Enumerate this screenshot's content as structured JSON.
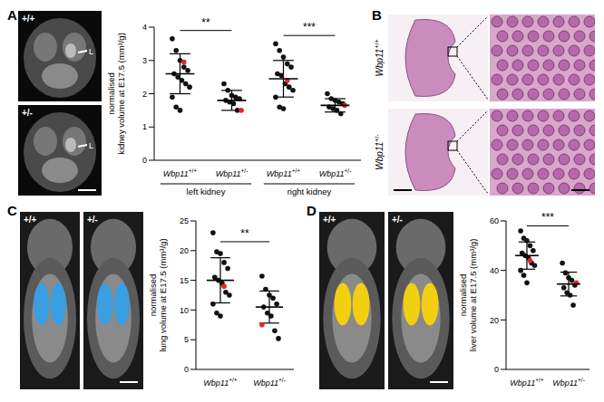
{
  "panels": [
    {
      "letter": "A",
      "images": [
        {
          "genotype": "+/+",
          "marker": "L"
        },
        {
          "genotype": "+/-",
          "marker": "L"
        }
      ]
    },
    {
      "letter": "B",
      "images": [
        {
          "gene": "Wbp11",
          "genotype": "+/+"
        },
        {
          "gene": "Wbp11",
          "genotype": "+/-"
        }
      ]
    },
    {
      "letter": "C",
      "images": [
        {
          "genotype": "+/+"
        },
        {
          "genotype": "+/-"
        }
      ]
    },
    {
      "letter": "D",
      "images": [
        {
          "genotype": "+/+"
        },
        {
          "genotype": "+/-"
        }
      ]
    }
  ],
  "chart_data": [
    {
      "type": "scatter",
      "y_label": "normalised kidney volume at E17.5 (mm³/g)",
      "categories": [
        "Wbp11+/+",
        "Wbp11+/-",
        "Wbp11+/+",
        "Wbp11+/-"
      ],
      "groups": [
        {
          "label": "left kidney",
          "span": [
            0,
            1
          ]
        },
        {
          "label": "right kidney",
          "span": [
            2,
            3
          ]
        }
      ],
      "values": [
        [
          3.65,
          3.3,
          3.0,
          2.8,
          2.7,
          2.6,
          2.5,
          2.4,
          2.3,
          2.2,
          1.9,
          1.6,
          1.5,
          2.95
        ],
        [
          2.3,
          2.1,
          1.95,
          1.9,
          1.85,
          1.8,
          1.75,
          1.7,
          1.5,
          1.5
        ],
        [
          3.5,
          3.3,
          3.1,
          2.9,
          2.8,
          2.6,
          2.55,
          2.3,
          2.2,
          2.1,
          1.9,
          1.6,
          1.55,
          2.4
        ],
        [
          2.0,
          1.85,
          1.8,
          1.75,
          1.7,
          1.6,
          1.55,
          1.5,
          1.4,
          1.65
        ]
      ],
      "colors": [
        [
          "#111111",
          "#111111",
          "#111111",
          "#111111",
          "#111111",
          "#111111",
          "#111111",
          "#111111",
          "#111111",
          "#111111",
          "#111111",
          "#111111",
          "#111111",
          "#e8262a"
        ],
        [
          "#111111",
          "#111111",
          "#111111",
          "#111111",
          "#111111",
          "#111111",
          "#111111",
          "#111111",
          "#111111",
          "#e8262a"
        ],
        [
          "#111111",
          "#111111",
          "#111111",
          "#111111",
          "#111111",
          "#111111",
          "#111111",
          "#111111",
          "#111111",
          "#111111",
          "#111111",
          "#111111",
          "#111111",
          "#e8262a"
        ],
        [
          "#111111",
          "#111111",
          "#111111",
          "#111111",
          "#111111",
          "#111111",
          "#111111",
          "#111111",
          "#111111",
          "#e8262a"
        ]
      ],
      "mean": [
        2.6,
        1.8,
        2.45,
        1.65
      ],
      "sd": [
        0.6,
        0.3,
        0.55,
        0.2
      ],
      "ylim": [
        0,
        4
      ],
      "yticks": [
        0,
        1,
        2,
        3,
        4
      ],
      "annotations": [
        {
          "text": "**",
          "between": [
            0,
            1
          ],
          "y": 3.9
        },
        {
          "text": "***",
          "between": [
            2,
            3
          ],
          "y": 3.75
        }
      ]
    },
    {
      "type": "scatter",
      "y_label": "normalised lung volume at E17.5 (mm³/g)",
      "categories": [
        "Wbp11+/+",
        "Wbp11+/-"
      ],
      "values": [
        [
          23,
          19.8,
          19.5,
          18,
          17,
          15.5,
          15,
          14.5,
          13,
          12.5,
          11,
          9.5,
          9,
          14
        ],
        [
          15.7,
          13.5,
          12.5,
          12,
          11,
          10.5,
          9.5,
          9,
          6.5,
          5.2,
          7.5
        ]
      ],
      "colors": [
        [
          "#111111",
          "#111111",
          "#111111",
          "#111111",
          "#111111",
          "#111111",
          "#111111",
          "#111111",
          "#111111",
          "#111111",
          "#111111",
          "#111111",
          "#111111",
          "#e8262a"
        ],
        [
          "#111111",
          "#111111",
          "#111111",
          "#111111",
          "#111111",
          "#111111",
          "#111111",
          "#111111",
          "#111111",
          "#111111",
          "#e8262a"
        ]
      ],
      "mean": [
        15,
        10.5
      ],
      "sd": [
        3.8,
        2.7
      ],
      "ylim": [
        0,
        25
      ],
      "yticks": [
        0,
        5,
        10,
        15,
        20,
        25
      ],
      "annotations": [
        {
          "text": "**",
          "between": [
            0,
            1
          ],
          "y": 21.5
        }
      ]
    },
    {
      "type": "scatter",
      "y_label": "normalised liver volume at E17.5 (mm³/g)",
      "categories": [
        "Wbp11+/+",
        "Wbp11+/-"
      ],
      "values": [
        [
          56,
          53,
          52,
          50,
          48,
          47,
          46,
          45,
          43,
          42,
          40,
          38,
          35,
          44
        ],
        [
          43,
          39,
          37,
          36,
          34,
          33,
          31,
          30,
          26,
          35
        ]
      ],
      "colors": [
        [
          "#111111",
          "#111111",
          "#111111",
          "#111111",
          "#111111",
          "#111111",
          "#111111",
          "#111111",
          "#111111",
          "#111111",
          "#111111",
          "#111111",
          "#111111",
          "#e8262a"
        ],
        [
          "#111111",
          "#111111",
          "#111111",
          "#111111",
          "#111111",
          "#111111",
          "#111111",
          "#111111",
          "#111111",
          "#e8262a"
        ]
      ],
      "mean": [
        46,
        34.5
      ],
      "sd": [
        5.5,
        4.8
      ],
      "ylim": [
        0,
        60
      ],
      "yticks": [
        0,
        20,
        40,
        60
      ],
      "annotations": [
        {
          "text": "***",
          "between": [
            0,
            1
          ],
          "y": 58
        }
      ]
    }
  ]
}
